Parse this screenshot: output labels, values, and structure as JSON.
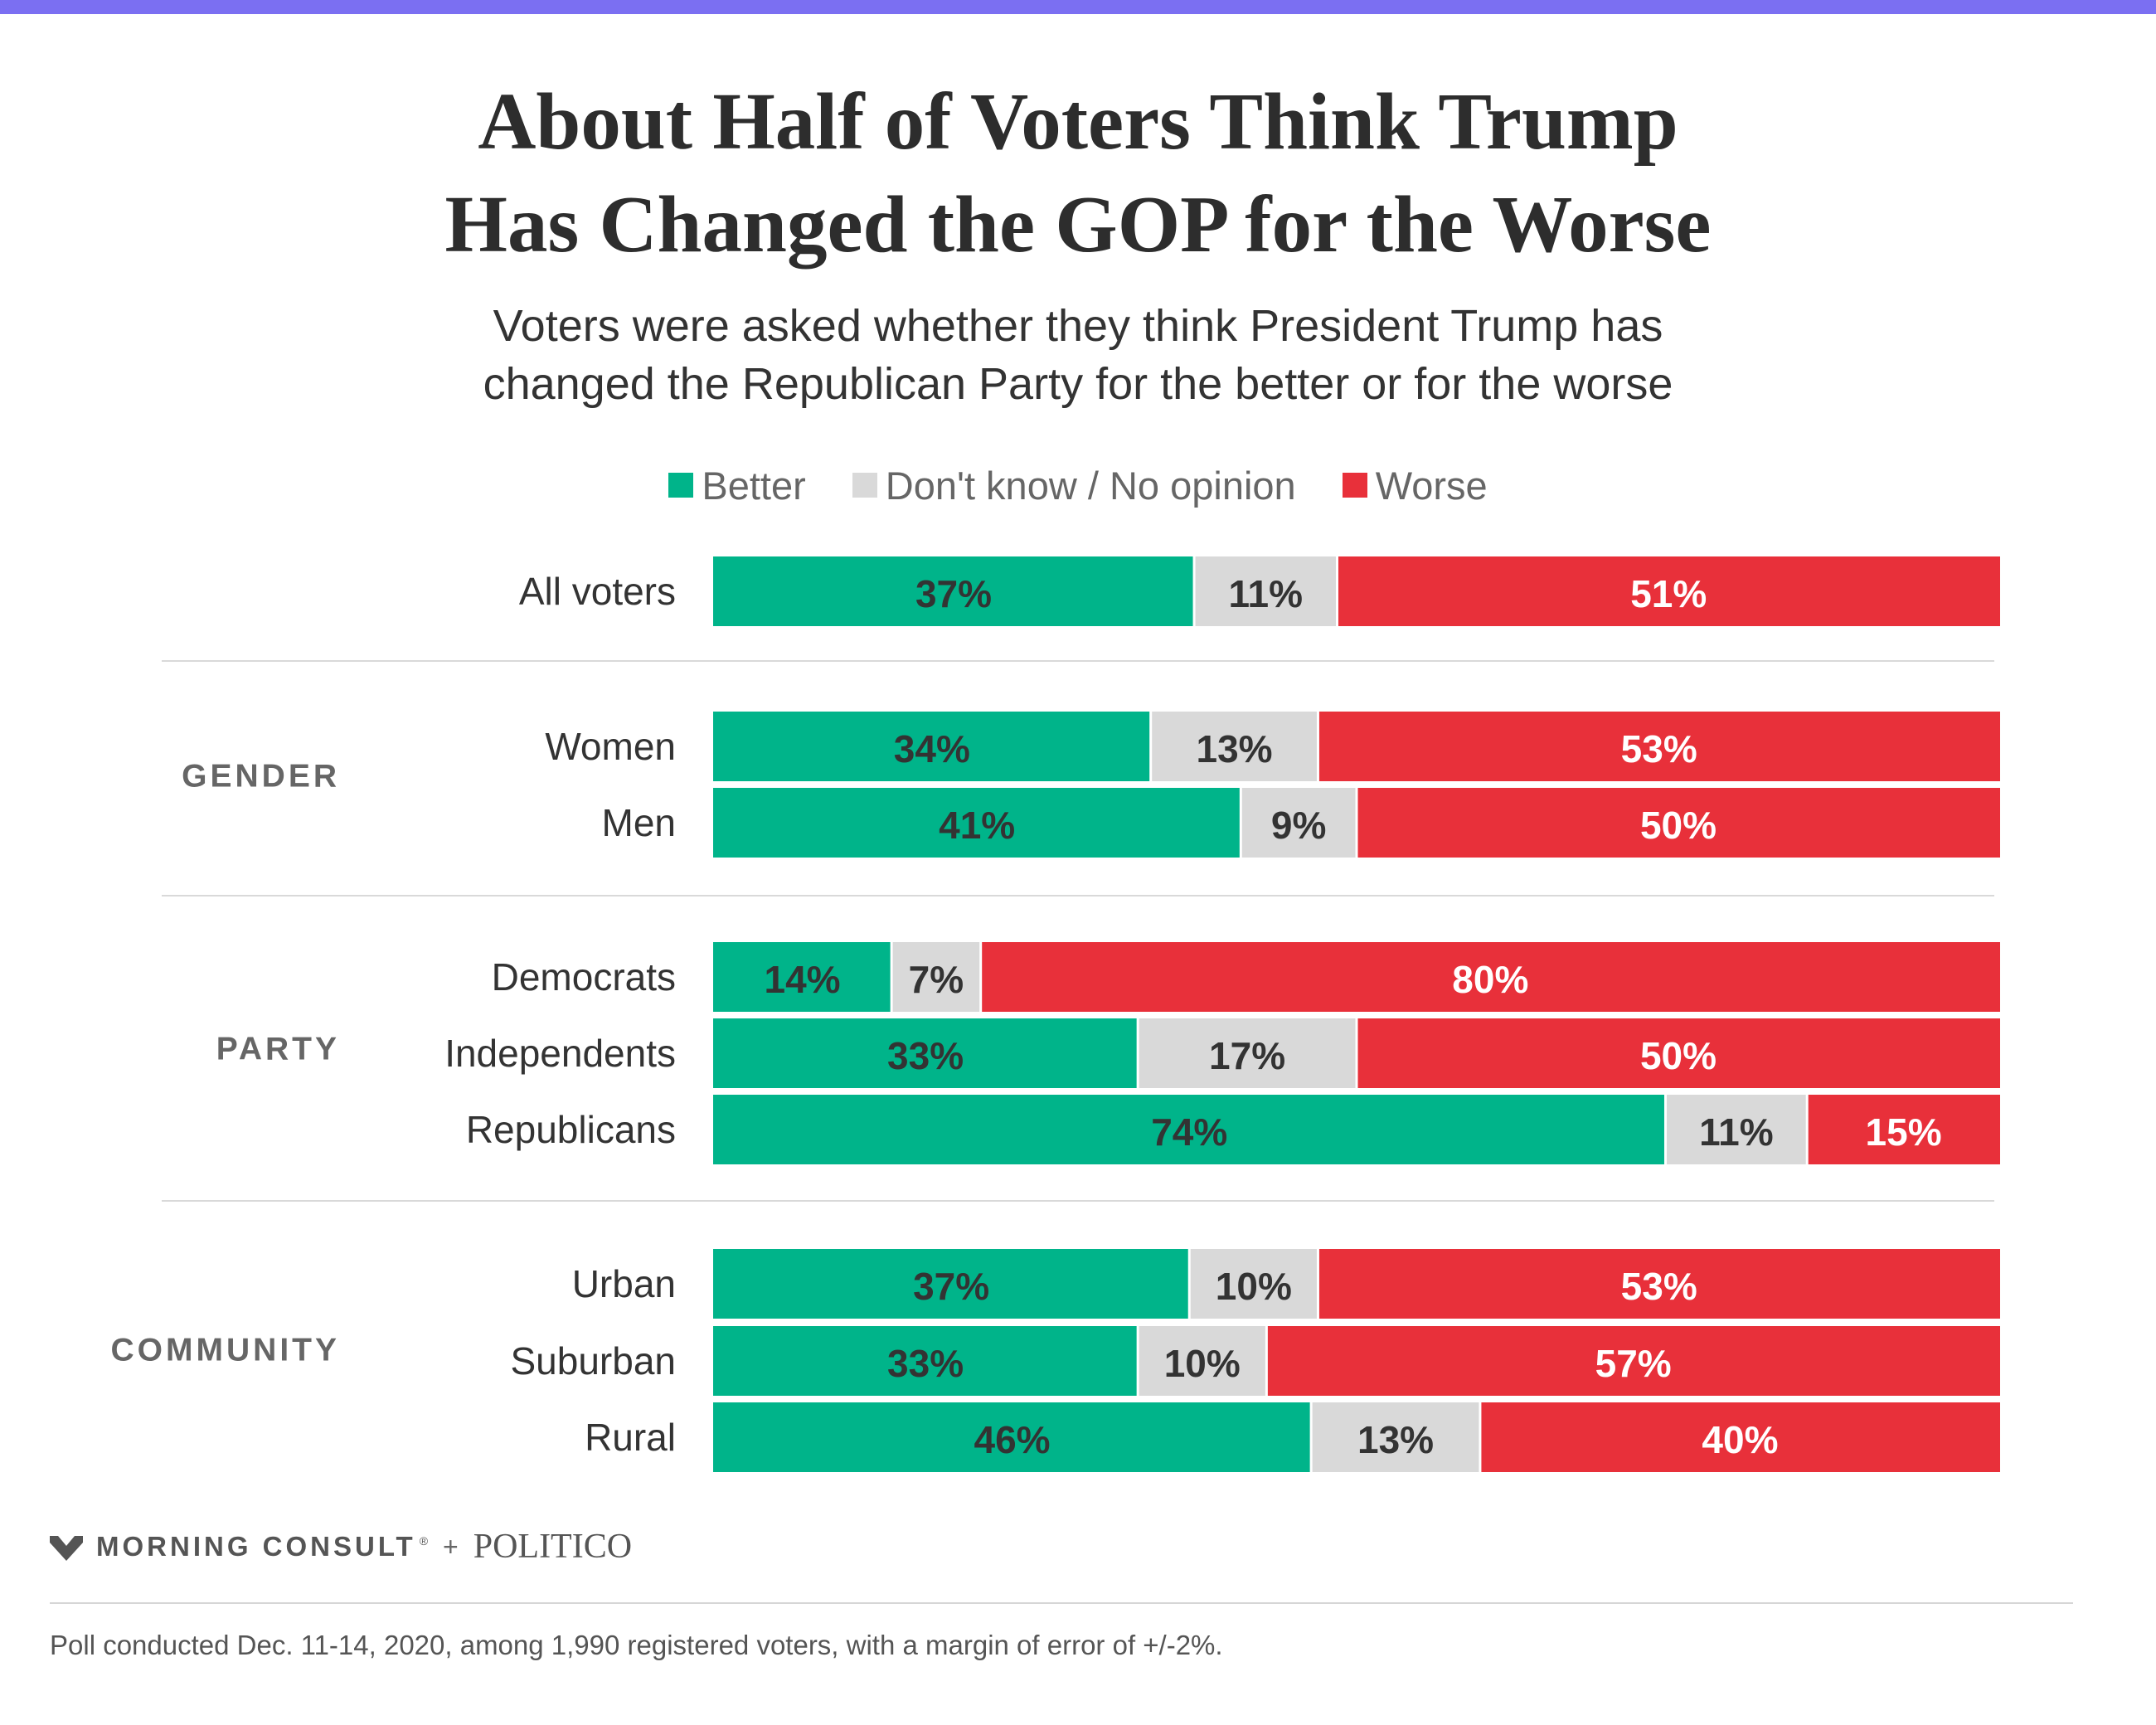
{
  "header": {
    "title_lines": [
      "About Half of Voters Think Trump",
      "Has Changed the GOP for the Worse"
    ],
    "subtitle_lines": [
      "Voters were asked whether they think President Trump has",
      "changed the Republican Party for the better or for the worse"
    ]
  },
  "legend": [
    {
      "label": "Better",
      "color": "#00b48a"
    },
    {
      "label": "Don't know / No opinion",
      "color": "#d9d9d9"
    },
    {
      "label": "Worse",
      "color": "#e8303a"
    }
  ],
  "chart_data": {
    "type": "bar",
    "orientation": "horizontal",
    "stacked": true,
    "normalized_to": 100,
    "title": "About Half of Voters Think Trump Has Changed the GOP for the Worse",
    "subtitle": "Voters were asked whether they think President Trump has changed the Republican Party for the better or for the worse",
    "legend_position": "top-center",
    "grid": false,
    "categories": [
      "All voters",
      "Women",
      "Men",
      "Democrats",
      "Independents",
      "Republicans",
      "Urban",
      "Suburban",
      "Rural"
    ],
    "groups": [
      {
        "label": "",
        "members": [
          "All voters"
        ]
      },
      {
        "label": "GENDER",
        "members": [
          "Women",
          "Men"
        ]
      },
      {
        "label": "PARTY",
        "members": [
          "Democrats",
          "Independents",
          "Republicans"
        ]
      },
      {
        "label": "COMMUNITY",
        "members": [
          "Urban",
          "Suburban",
          "Rural"
        ]
      }
    ],
    "series": [
      {
        "name": "Better",
        "color": "#00b48a",
        "label_color": "#333333",
        "values": [
          37,
          34,
          41,
          14,
          33,
          74,
          37,
          33,
          46
        ]
      },
      {
        "name": "Don't know / No opinion",
        "color": "#d9d9d9",
        "label_color": "#333333",
        "values": [
          11,
          13,
          9,
          7,
          17,
          11,
          10,
          10,
          13
        ]
      },
      {
        "name": "Worse",
        "color": "#e8303a",
        "label_color": "#ffffff",
        "values": [
          51,
          53,
          50,
          80,
          50,
          15,
          53,
          57,
          40
        ]
      }
    ],
    "value_suffix": "%"
  },
  "brand": {
    "primary": "MORNING CONSULT",
    "plus": "+",
    "partner": "POLITICO"
  },
  "footnote": "Poll conducted Dec. 11-14, 2020, among 1,990 registered voters, with a margin of error of +/-2%."
}
